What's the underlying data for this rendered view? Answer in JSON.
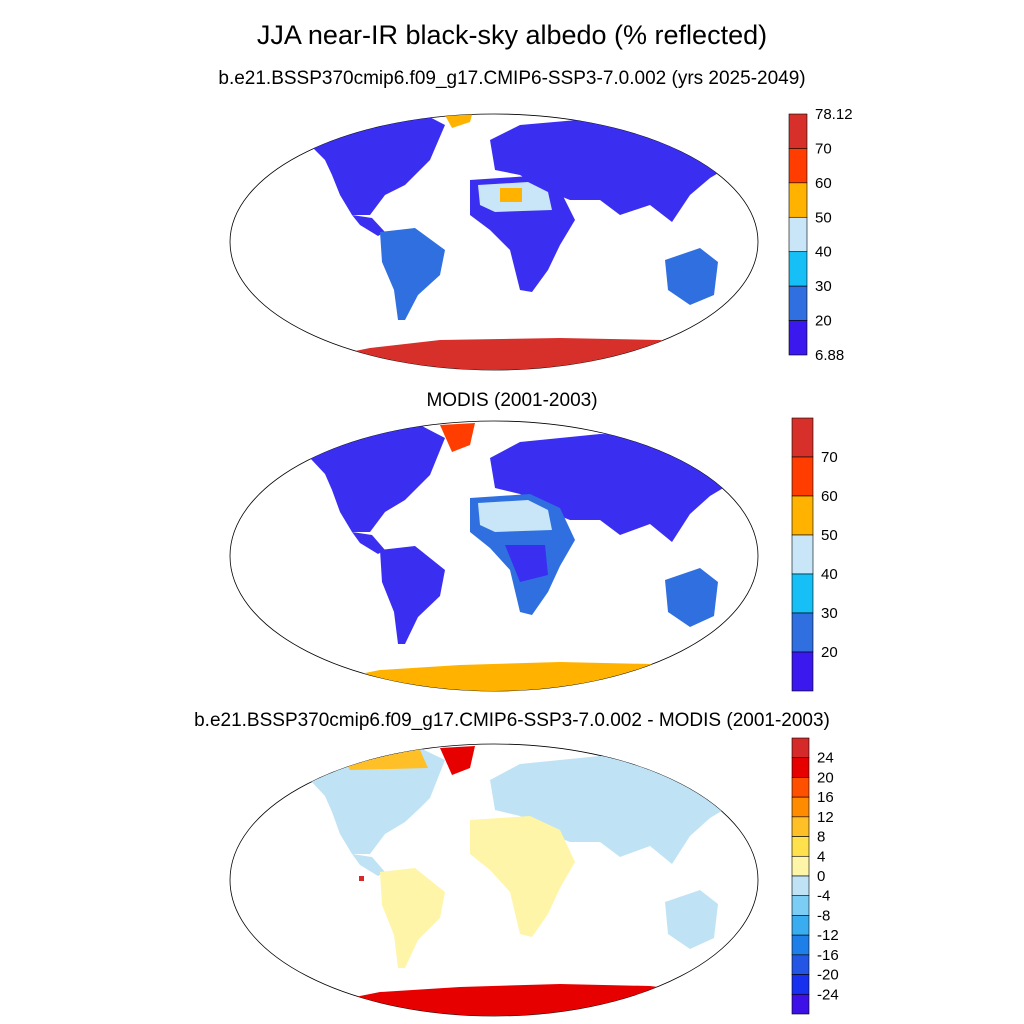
{
  "title": "JJA near-IR black-sky albedo (% reflected)",
  "panels": [
    {
      "title": "b.e21.BSSP370cmip6.f09_g17.CMIP6-SSP3-7.0.002 (yrs 2025-2049)",
      "colorbar": {
        "labels": [
          "78.12",
          "70",
          "60",
          "50",
          "40",
          "30",
          "20",
          "6.88"
        ],
        "colors": [
          "#d7302a",
          "#ff3d00",
          "#ffb300",
          "#c8e6f8",
          "#16bff5",
          "#2f6fe0",
          "#3a18ee"
        ]
      }
    },
    {
      "title": "MODIS (2001-2003)",
      "colorbar": {
        "labels": [
          "70",
          "60",
          "50",
          "40",
          "30",
          "20"
        ],
        "colors": [
          "#d7302a",
          "#ff3d00",
          "#ffb300",
          "#c8e6f8",
          "#16bff5",
          "#2f6fe0",
          "#3a18ee"
        ]
      }
    },
    {
      "title": "b.e21.BSSP370cmip6.f09_g17.CMIP6-SSP3-7.0.002 - MODIS (2001-2003)",
      "colorbar": {
        "labels": [
          "24",
          "20",
          "16",
          "12",
          "8",
          "4",
          "0",
          "-4",
          "-8",
          "-12",
          "-16",
          "-20",
          "-24"
        ],
        "colors": [
          "#d62a2a",
          "#e60000",
          "#ff5000",
          "#ff8c00",
          "#ffbf26",
          "#ffe14d",
          "#fff5a8",
          "#bfe3f5",
          "#7ccdf5",
          "#3aadf0",
          "#1f7fe8",
          "#2456e6",
          "#1830f0",
          "#3c10e6"
        ]
      }
    }
  ]
}
